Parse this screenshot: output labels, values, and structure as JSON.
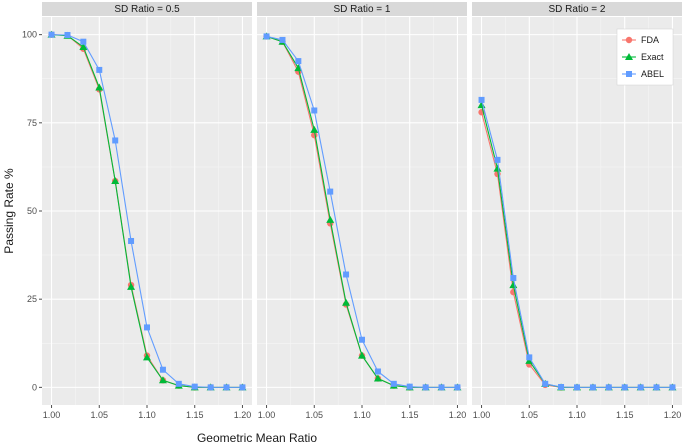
{
  "chart_data": {
    "type": "line",
    "xlabel": "Geometric Mean Ratio",
    "ylabel": "Passing Rate %",
    "xlim": [
      0.99,
      1.21
    ],
    "ylim": [
      -5,
      105
    ],
    "x_ticks": [
      "1.00",
      "1.05",
      "1.10",
      "1.15",
      "1.20"
    ],
    "y_ticks": [
      "0",
      "25",
      "50",
      "75",
      "100"
    ],
    "legend_position": "top-right of third panel",
    "grid": true,
    "colors": {
      "FDA": "#f8766d",
      "Exact": "#00ba38",
      "ABEL": "#619cff"
    },
    "x": [
      1.0,
      1.0167,
      1.0333,
      1.05,
      1.0667,
      1.0833,
      1.1,
      1.1167,
      1.1333,
      1.15,
      1.1667,
      1.1833,
      1.2
    ],
    "legend": [
      "FDA",
      "Exact",
      "ABEL"
    ],
    "panels": [
      {
        "label": "SD Ratio = 0.5",
        "series": [
          {
            "name": "FDA",
            "values": [
              100,
              99.8,
              96,
              84.5,
              58.5,
              29,
              9,
              2,
              0.5,
              0,
              0,
              0,
              0
            ]
          },
          {
            "name": "Exact",
            "values": [
              100,
              99.7,
              96.5,
              85,
              58.5,
              28.5,
              8.5,
              2,
              0.5,
              0,
              0,
              0,
              0
            ]
          },
          {
            "name": "ABEL",
            "values": [
              100,
              99.9,
              98,
              90,
              70,
              41.5,
              17,
              5,
              1,
              0.2,
              0,
              0,
              0
            ]
          }
        ]
      },
      {
        "label": "SD Ratio = 1",
        "series": [
          {
            "name": "FDA",
            "values": [
              99.5,
              98,
              89.5,
              71.5,
              46.5,
              23.5,
              9,
              2.5,
              0.5,
              0,
              0,
              0,
              0
            ]
          },
          {
            "name": "Exact",
            "values": [
              99.5,
              98,
              90.5,
              73,
              47.5,
              24,
              9,
              2.5,
              0.5,
              0,
              0,
              0,
              0
            ]
          },
          {
            "name": "ABEL",
            "values": [
              99.5,
              98.5,
              92.5,
              78.5,
              55.5,
              32,
              13.5,
              4.5,
              1,
              0.2,
              0,
              0,
              0
            ]
          }
        ]
      },
      {
        "label": "SD Ratio = 2",
        "series": [
          {
            "name": "FDA",
            "values": [
              78,
              60.5,
              27,
              6.5,
              0.7,
              0,
              0,
              0,
              0,
              0,
              0,
              0,
              0
            ]
          },
          {
            "name": "Exact",
            "values": [
              80,
              62,
              29,
              7.5,
              1,
              0,
              0,
              0,
              0,
              0,
              0,
              0,
              0
            ]
          },
          {
            "name": "ABEL",
            "values": [
              81.5,
              64.5,
              31,
              8.5,
              1,
              0.1,
              0,
              0,
              0,
              0,
              0,
              0,
              0
            ]
          }
        ]
      }
    ]
  }
}
